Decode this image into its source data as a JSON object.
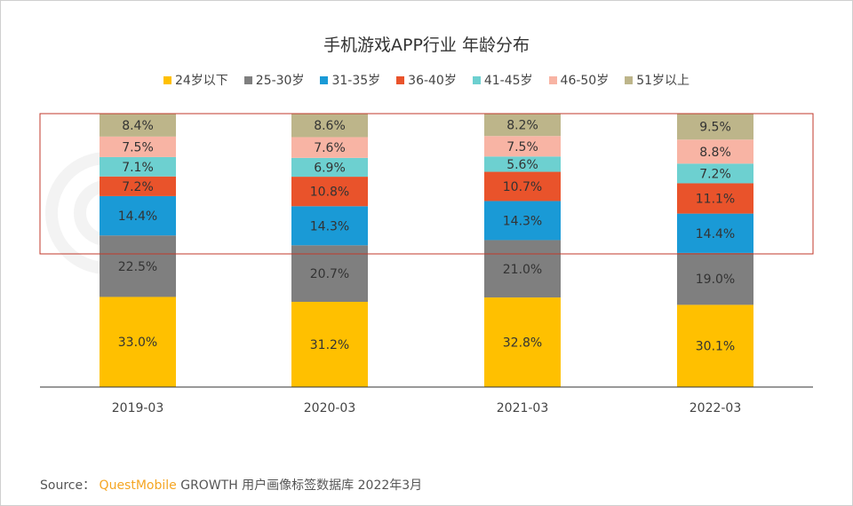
{
  "chart_data": {
    "type": "bar",
    "stacked": true,
    "title": "手机游戏APP行业 年龄分布",
    "categories": [
      "2019-03",
      "2020-03",
      "2021-03",
      "2022-03"
    ],
    "series": [
      {
        "name": "24岁以下",
        "color": "#FFC000",
        "values": [
          33.0,
          31.2,
          32.8,
          30.1
        ]
      },
      {
        "name": "25-30岁",
        "color": "#7F7F7F",
        "values": [
          22.5,
          20.7,
          21.0,
          19.0
        ]
      },
      {
        "name": "31-35岁",
        "color": "#1A9AD6",
        "values": [
          14.4,
          14.3,
          14.3,
          14.4
        ]
      },
      {
        "name": "36-40岁",
        "color": "#E9532B",
        "values": [
          7.2,
          10.8,
          10.7,
          11.1
        ]
      },
      {
        "name": "41-45岁",
        "color": "#6DD0D0",
        "values": [
          7.1,
          6.9,
          5.6,
          7.2
        ]
      },
      {
        "name": "46-50岁",
        "color": "#F8B4A4",
        "values": [
          7.5,
          7.6,
          7.5,
          8.8
        ]
      },
      {
        "name": "51岁以上",
        "color": "#BDB58A",
        "values": [
          8.4,
          8.6,
          8.2,
          9.5
        ]
      }
    ],
    "value_suffix": "%",
    "ylim": [
      0,
      100
    ],
    "legend": "top",
    "grid": false
  },
  "highlight_color": "#C0392B",
  "source": {
    "label": "Source：",
    "brand": "QuestMobile",
    "text": "GROWTH 用户画像标签数据库 2022年3月"
  },
  "watermark": "QUESTMOBILE"
}
